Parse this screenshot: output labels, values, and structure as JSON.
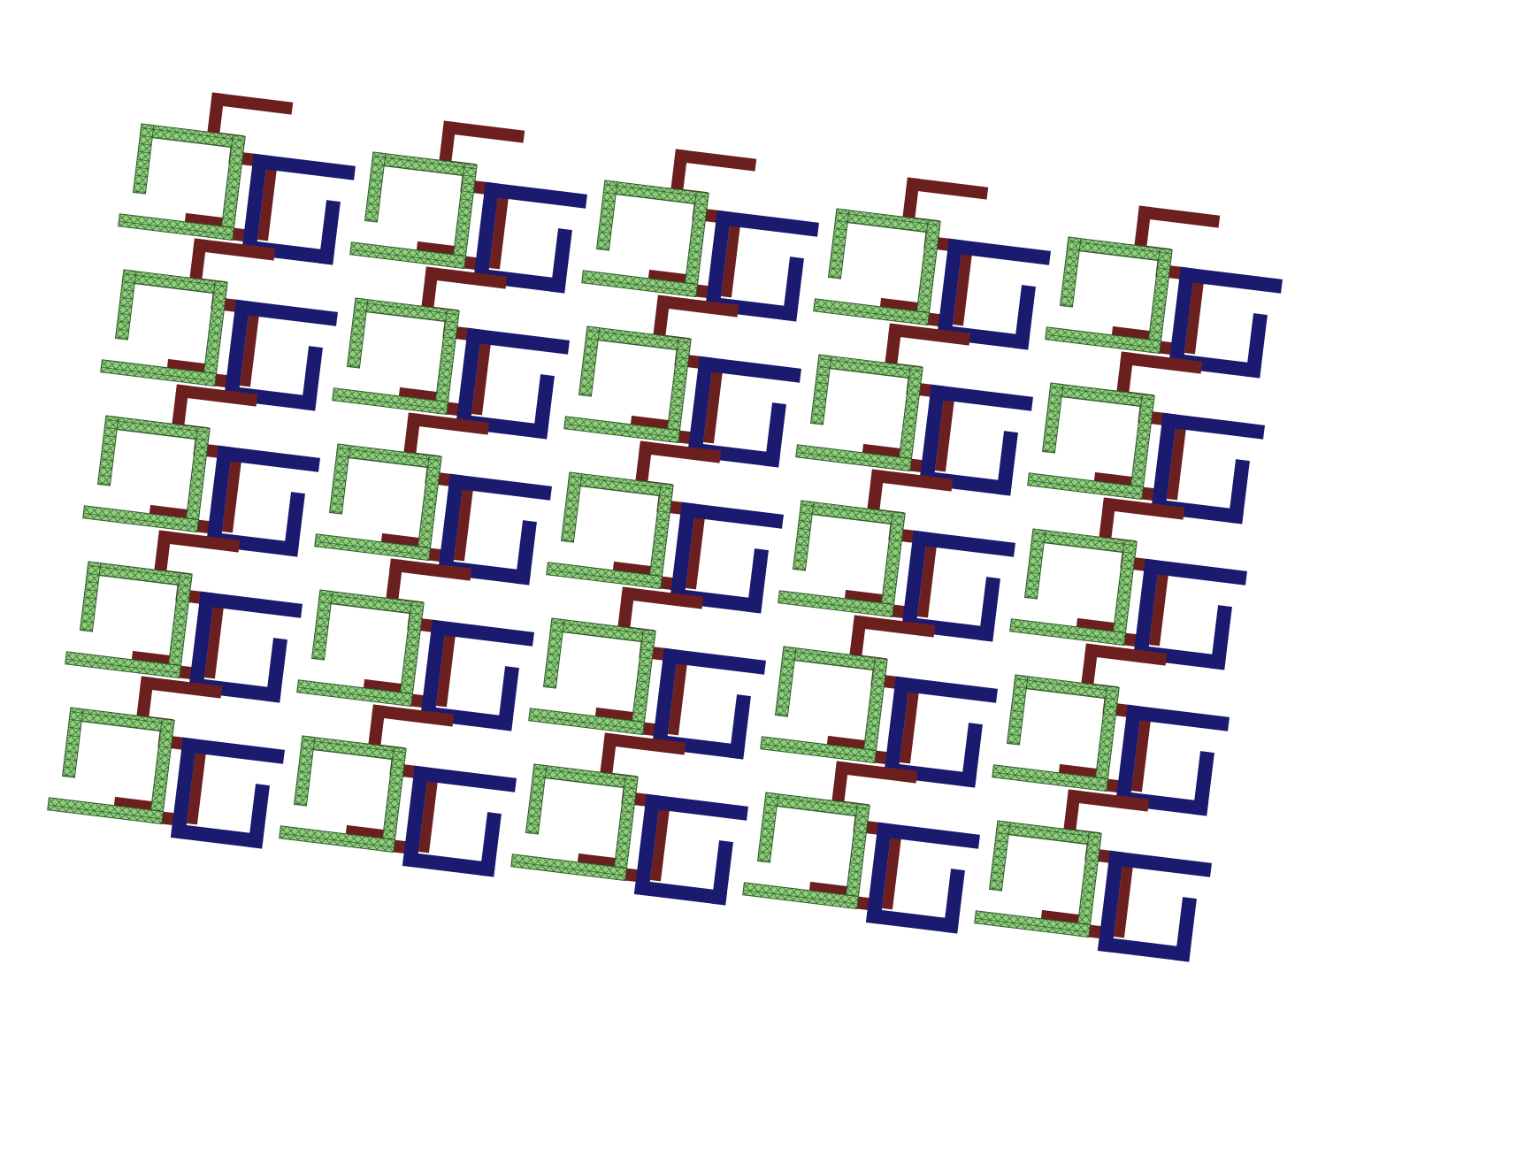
{
  "diagram": {
    "type": "periodic-array",
    "rows": 5,
    "columns": 5,
    "unit_cell": {
      "parts": [
        {
          "name": "green-split-ring",
          "shape": "open-square-ring",
          "fill": "#8fcf7c",
          "mesh_color": "#2e5a2a",
          "meshed": true
        },
        {
          "name": "blue-split-ring",
          "shape": "open-square-ring",
          "fill": "#1a1a6e",
          "meshed": false
        },
        {
          "name": "red-connector",
          "shape": "zigzag-strip",
          "fill": "#6b1f1f",
          "meshed": false
        }
      ]
    },
    "background": "#ffffff",
    "array_rotation_deg": 7
  }
}
